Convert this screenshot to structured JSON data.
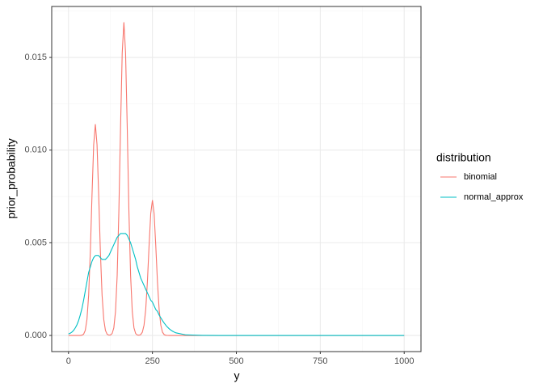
{
  "chart_data": {
    "type": "line",
    "xlabel": "y",
    "ylabel": "prior_probability",
    "legend_title": "distribution",
    "legend_position": "right",
    "x": [
      0,
      5,
      10,
      15,
      20,
      25,
      30,
      35,
      40,
      45,
      50,
      55,
      60,
      65,
      70,
      75,
      80,
      85,
      90,
      95,
      100,
      105,
      110,
      115,
      120,
      125,
      130,
      135,
      140,
      145,
      150,
      155,
      160,
      165,
      170,
      175,
      180,
      185,
      190,
      195,
      200,
      205,
      210,
      215,
      220,
      225,
      230,
      235,
      240,
      245,
      250,
      255,
      260,
      265,
      270,
      275,
      280,
      285,
      290,
      295,
      300,
      305,
      310,
      315,
      320,
      350,
      400,
      450,
      500,
      550,
      600,
      650,
      700,
      750,
      800,
      850,
      900,
      950,
      1000
    ],
    "series": [
      {
        "name": "binomial",
        "color": "#F8766D",
        "values": [
          0,
          0,
          0,
          0,
          0,
          0,
          0,
          0,
          1.6e-05,
          7e-05,
          0.000278,
          0.000866,
          0.002177,
          0.004503,
          0.007547,
          0.010283,
          0.0114,
          0.010283,
          0.007547,
          0.004503,
          0.002177,
          0.000866,
          0.000278,
          7e-05,
          2e-05,
          2.6e-05,
          0.000106,
          0.000412,
          0.001284,
          0.003228,
          0.006676,
          0.011188,
          0.015244,
          0.0169,
          0.015244,
          0.011188,
          0.006676,
          0.003228,
          0.001284,
          0.000412,
          0.000106,
          2.5e-05,
          1.4e-05,
          4.6e-05,
          0.000178,
          0.000555,
          0.001394,
          0.002884,
          0.004833,
          0.006585,
          0.0073,
          0.006585,
          0.004833,
          0.002884,
          0.001394,
          0.000555,
          0.000178,
          4.6e-05,
          1e-05,
          2e-06,
          0,
          0,
          0,
          0,
          0,
          0,
          0,
          0,
          0,
          0,
          0,
          0,
          0,
          0,
          0,
          0,
          0,
          0,
          0
        ]
      },
      {
        "name": "normal_approx",
        "color": "#00BFC4",
        "values": [
          8e-05,
          0.00012,
          0.00018,
          0.00027,
          0.0004,
          0.00057,
          0.0008,
          0.0011,
          0.00145,
          0.0019,
          0.0024,
          0.0029,
          0.0034,
          0.0037,
          0.004,
          0.0042,
          0.0043,
          0.0043,
          0.0043,
          0.0042,
          0.0041,
          0.0041,
          0.0041,
          0.0042,
          0.0043,
          0.0045,
          0.0047,
          0.0049,
          0.0051,
          0.0053,
          0.0054,
          0.0055,
          0.0055,
          0.0055,
          0.0055,
          0.0054,
          0.0052,
          0.005,
          0.0047,
          0.0044,
          0.0041,
          0.0037,
          0.0034,
          0.0031,
          0.0029,
          0.0027,
          0.0025,
          0.0023,
          0.0021,
          0.0019,
          0.0018,
          0.0016,
          0.0014,
          0.0013,
          0.0011,
          0.00095,
          0.0008,
          0.00067,
          0.00055,
          0.00045,
          0.00036,
          0.00029,
          0.00023,
          0.00018,
          0.00014,
          3e-05,
          4e-06,
          0,
          0,
          0,
          0,
          0,
          0,
          0,
          0,
          0,
          0,
          0,
          0
        ]
      }
    ],
    "xlim": [
      -50,
      1050
    ],
    "ylim": [
      -0.00087,
      0.01775
    ],
    "xticks": [
      0,
      250,
      500,
      750,
      1000
    ],
    "yticks": [
      {
        "value": 0,
        "label": "0.000"
      },
      {
        "value": 0.005,
        "label": "0.005"
      },
      {
        "value": 0.01,
        "label": "0.010"
      },
      {
        "value": 0.015,
        "label": "0.015"
      }
    ],
    "xminor_ticks": [
      125,
      375,
      625,
      875
    ],
    "yminor_ticks": [
      0.0025,
      0.0075,
      0.0125,
      0.0175
    ],
    "grid": true
  }
}
